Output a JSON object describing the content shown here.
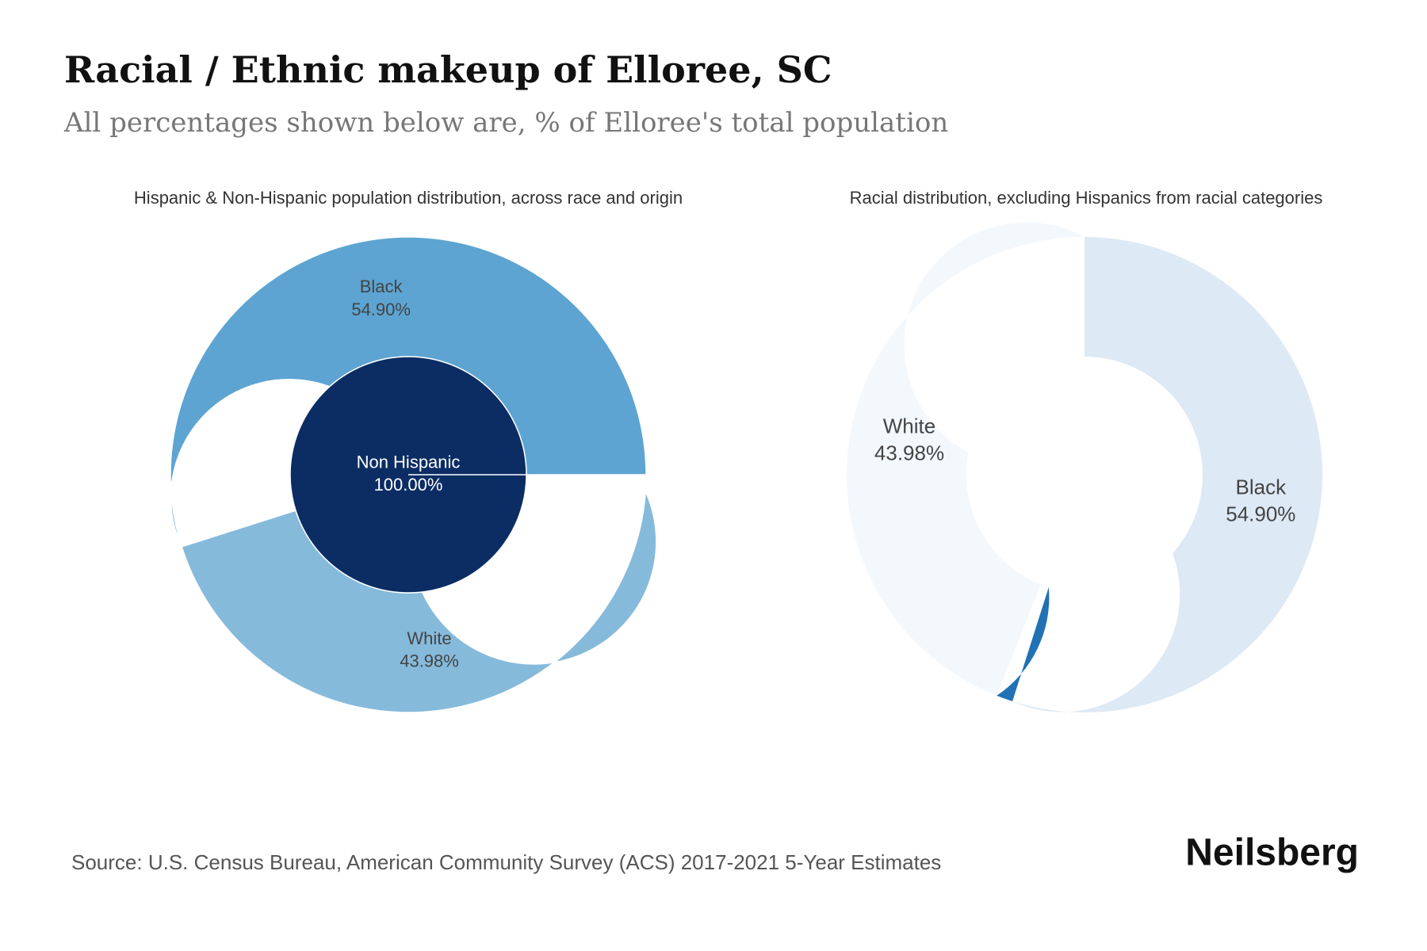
{
  "title": "Racial / Ethnic makeup of Elloree, SC",
  "subtitle": "All percentages shown below are, % of Elloree's total population",
  "source": "Source: U.S. Census Bureau, American Community Survey (ACS) 2017-2021 5-Year Estimates",
  "brand": "Neilsberg",
  "chart_data": [
    {
      "type": "sunburst",
      "title": "Hispanic & Non-Hispanic population distribution, across race and origin",
      "start_angle": 0,
      "direction": "counterclockwise",
      "inner": {
        "categories": [
          "Non Hispanic"
        ],
        "values": [
          100
        ],
        "value_labels": [
          "100.00%"
        ],
        "colors": [
          "#0b2d64"
        ]
      },
      "outer": {
        "categories": [
          "Black",
          "White",
          null
        ],
        "values": [
          54.9,
          43.98,
          1.12
        ],
        "value_labels": [
          "54.90%",
          "43.98%",
          null
        ],
        "colors": [
          "#5da4d2",
          "#86badb",
          "#ffffff"
        ]
      }
    },
    {
      "type": "donut",
      "title": "Racial distribution, excluding Hispanics from racial categories",
      "start_angle": 90,
      "direction": "clockwise",
      "categories": [
        "Black",
        null,
        "White"
      ],
      "values": [
        54.9,
        1.12,
        43.98
      ],
      "value_labels": [
        "54.90%",
        null,
        "43.98%"
      ],
      "colors": [
        "#dde9f5",
        "#2171b5",
        "#f3f8fd"
      ]
    }
  ]
}
